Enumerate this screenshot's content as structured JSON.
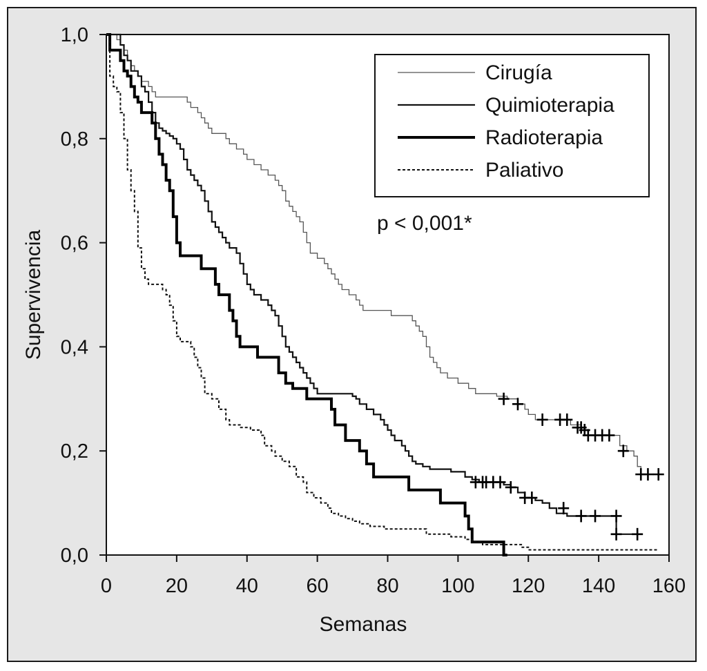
{
  "chart_data": {
    "type": "line",
    "subtype": "kaplan-meier",
    "title": "",
    "xlabel": "Semanas",
    "ylabel": "Supervivencia",
    "xlim": [
      0,
      160
    ],
    "ylim": [
      0,
      1
    ],
    "x_ticks": [
      "0",
      "20",
      "40",
      "60",
      "80",
      "100",
      "120",
      "140",
      "160"
    ],
    "y_ticks": [
      "0,0",
      "0,2",
      "0,4",
      "0,6",
      "0,8",
      "1,0"
    ],
    "annotation": "p < 0,001*",
    "legend_position": "top-right",
    "series": [
      {
        "name": "Cirugía",
        "style": "thin",
        "color": "#555555",
        "points": [
          [
            0,
            1.0
          ],
          [
            3,
            1.0
          ],
          [
            3,
            0.99
          ],
          [
            4,
            0.98
          ],
          [
            5,
            0.97
          ],
          [
            6,
            0.95
          ],
          [
            7,
            0.94
          ],
          [
            8,
            0.93
          ],
          [
            9,
            0.92
          ],
          [
            10,
            0.91
          ],
          [
            12,
            0.9
          ],
          [
            13,
            0.89
          ],
          [
            14,
            0.88
          ],
          [
            22,
            0.88
          ],
          [
            23,
            0.87
          ],
          [
            24,
            0.86
          ],
          [
            26,
            0.85
          ],
          [
            27,
            0.84
          ],
          [
            28,
            0.83
          ],
          [
            29,
            0.82
          ],
          [
            30,
            0.81
          ],
          [
            33,
            0.81
          ],
          [
            34,
            0.8
          ],
          [
            35,
            0.79
          ],
          [
            37,
            0.78
          ],
          [
            38,
            0.78
          ],
          [
            39,
            0.77
          ],
          [
            40,
            0.76
          ],
          [
            42,
            0.75
          ],
          [
            44,
            0.74
          ],
          [
            46,
            0.73
          ],
          [
            48,
            0.72
          ],
          [
            49,
            0.71
          ],
          [
            50,
            0.7
          ],
          [
            51,
            0.68
          ],
          [
            52,
            0.67
          ],
          [
            53,
            0.66
          ],
          [
            54,
            0.65
          ],
          [
            55,
            0.64
          ],
          [
            56,
            0.62
          ],
          [
            57,
            0.6
          ],
          [
            58,
            0.58
          ],
          [
            60,
            0.57
          ],
          [
            62,
            0.56
          ],
          [
            63,
            0.55
          ],
          [
            64,
            0.54
          ],
          [
            65,
            0.53
          ],
          [
            66,
            0.52
          ],
          [
            67,
            0.51
          ],
          [
            69,
            0.5
          ],
          [
            71,
            0.49
          ],
          [
            72,
            0.48
          ],
          [
            73,
            0.47
          ],
          [
            80,
            0.47
          ],
          [
            81,
            0.46
          ],
          [
            86,
            0.46
          ],
          [
            87,
            0.45
          ],
          [
            88,
            0.44
          ],
          [
            89,
            0.43
          ],
          [
            90,
            0.42
          ],
          [
            91,
            0.4
          ],
          [
            92,
            0.38
          ],
          [
            93,
            0.37
          ],
          [
            94,
            0.36
          ],
          [
            95,
            0.35
          ],
          [
            97,
            0.34
          ],
          [
            100,
            0.33
          ],
          [
            103,
            0.32
          ],
          [
            105,
            0.31
          ],
          [
            111,
            0.305
          ],
          [
            114,
            0.3
          ],
          [
            117,
            0.29
          ],
          [
            119,
            0.28
          ],
          [
            120,
            0.27
          ],
          [
            122,
            0.26
          ],
          [
            131,
            0.26
          ],
          [
            132,
            0.25
          ],
          [
            135,
            0.245
          ],
          [
            136,
            0.24
          ],
          [
            137,
            0.23
          ],
          [
            145,
            0.23
          ],
          [
            146,
            0.21
          ],
          [
            148,
            0.2
          ],
          [
            150,
            0.19
          ],
          [
            151,
            0.17
          ],
          [
            152,
            0.155
          ],
          [
            158,
            0.155
          ]
        ],
        "censored": [
          [
            113,
            0.3
          ],
          [
            117,
            0.29
          ],
          [
            124,
            0.26
          ],
          [
            129,
            0.26
          ],
          [
            131,
            0.26
          ],
          [
            134,
            0.245
          ],
          [
            135,
            0.245
          ],
          [
            136,
            0.24
          ],
          [
            137,
            0.23
          ],
          [
            139,
            0.23
          ],
          [
            141,
            0.23
          ],
          [
            143,
            0.23
          ],
          [
            147,
            0.2
          ],
          [
            152,
            0.155
          ],
          [
            154,
            0.155
          ],
          [
            157,
            0.155
          ]
        ]
      },
      {
        "name": "Quimioterapia",
        "style": "medium",
        "color": "#111111",
        "points": [
          [
            0,
            1.0
          ],
          [
            3,
            1.0
          ],
          [
            4,
            0.98
          ],
          [
            5,
            0.96
          ],
          [
            6,
            0.95
          ],
          [
            7,
            0.93
          ],
          [
            9,
            0.92
          ],
          [
            10,
            0.9
          ],
          [
            11,
            0.89
          ],
          [
            12,
            0.87
          ],
          [
            13,
            0.85
          ],
          [
            14,
            0.83
          ],
          [
            15,
            0.82
          ],
          [
            16,
            0.815
          ],
          [
            17,
            0.81
          ],
          [
            18,
            0.805
          ],
          [
            19,
            0.8
          ],
          [
            20,
            0.79
          ],
          [
            21,
            0.78
          ],
          [
            22,
            0.76
          ],
          [
            23,
            0.74
          ],
          [
            24,
            0.73
          ],
          [
            25,
            0.72
          ],
          [
            26,
            0.71
          ],
          [
            27,
            0.7
          ],
          [
            28,
            0.68
          ],
          [
            29,
            0.66
          ],
          [
            30,
            0.64
          ],
          [
            31,
            0.63
          ],
          [
            32,
            0.62
          ],
          [
            33,
            0.61
          ],
          [
            34,
            0.6
          ],
          [
            35,
            0.59
          ],
          [
            37,
            0.58
          ],
          [
            38,
            0.56
          ],
          [
            39,
            0.54
          ],
          [
            40,
            0.52
          ],
          [
            41,
            0.51
          ],
          [
            42,
            0.5
          ],
          [
            44,
            0.49
          ],
          [
            46,
            0.48
          ],
          [
            47,
            0.47
          ],
          [
            48,
            0.46
          ],
          [
            49,
            0.44
          ],
          [
            50,
            0.42
          ],
          [
            51,
            0.4
          ],
          [
            52,
            0.39
          ],
          [
            53,
            0.38
          ],
          [
            54,
            0.37
          ],
          [
            55,
            0.36
          ],
          [
            56,
            0.35
          ],
          [
            57,
            0.34
          ],
          [
            58,
            0.33
          ],
          [
            59,
            0.32
          ],
          [
            60,
            0.31
          ],
          [
            70,
            0.305
          ],
          [
            71,
            0.3
          ],
          [
            72,
            0.29
          ],
          [
            74,
            0.28
          ],
          [
            76,
            0.27
          ],
          [
            78,
            0.26
          ],
          [
            79,
            0.25
          ],
          [
            80,
            0.24
          ],
          [
            81,
            0.23
          ],
          [
            82,
            0.22
          ],
          [
            84,
            0.21
          ],
          [
            85,
            0.2
          ],
          [
            86,
            0.19
          ],
          [
            87,
            0.18
          ],
          [
            88,
            0.175
          ],
          [
            90,
            0.17
          ],
          [
            92,
            0.165
          ],
          [
            98,
            0.16
          ],
          [
            102,
            0.15
          ],
          [
            104,
            0.145
          ],
          [
            106,
            0.14
          ],
          [
            108,
            0.14
          ],
          [
            113,
            0.135
          ],
          [
            115,
            0.13
          ],
          [
            117,
            0.12
          ],
          [
            119,
            0.11
          ],
          [
            122,
            0.105
          ],
          [
            124,
            0.1
          ],
          [
            126,
            0.09
          ],
          [
            128,
            0.08
          ],
          [
            131,
            0.075
          ],
          [
            145,
            0.075
          ],
          [
            145,
            0.04
          ],
          [
            152,
            0.04
          ]
        ],
        "censored": [
          [
            105,
            0.14
          ],
          [
            107,
            0.14
          ],
          [
            108,
            0.14
          ],
          [
            110,
            0.14
          ],
          [
            112,
            0.14
          ],
          [
            115,
            0.13
          ],
          [
            119,
            0.11
          ],
          [
            121,
            0.11
          ],
          [
            130,
            0.09
          ],
          [
            135,
            0.075
          ],
          [
            139,
            0.075
          ],
          [
            145,
            0.075
          ],
          [
            145,
            0.04
          ],
          [
            151,
            0.04
          ]
        ]
      },
      {
        "name": "Radioterapia",
        "style": "thick",
        "color": "#000000",
        "points": [
          [
            0,
            1.0
          ],
          [
            1,
            0.97
          ],
          [
            3,
            0.97
          ],
          [
            4,
            0.95
          ],
          [
            5,
            0.93
          ],
          [
            6,
            0.92
          ],
          [
            7,
            0.9
          ],
          [
            8,
            0.88
          ],
          [
            9,
            0.87
          ],
          [
            10,
            0.85
          ],
          [
            12,
            0.85
          ],
          [
            13,
            0.83
          ],
          [
            14,
            0.8
          ],
          [
            15,
            0.77
          ],
          [
            16,
            0.75
          ],
          [
            17,
            0.72
          ],
          [
            18,
            0.7
          ],
          [
            19,
            0.65
          ],
          [
            20,
            0.6
          ],
          [
            21,
            0.575
          ],
          [
            27,
            0.55
          ],
          [
            31,
            0.52
          ],
          [
            32,
            0.5
          ],
          [
            35,
            0.47
          ],
          [
            36,
            0.45
          ],
          [
            37,
            0.42
          ],
          [
            38,
            0.4
          ],
          [
            43,
            0.38
          ],
          [
            49,
            0.35
          ],
          [
            51,
            0.33
          ],
          [
            53,
            0.32
          ],
          [
            57,
            0.3
          ],
          [
            64,
            0.28
          ],
          [
            65,
            0.25
          ],
          [
            68,
            0.22
          ],
          [
            72,
            0.2
          ],
          [
            74,
            0.175
          ],
          [
            76,
            0.15
          ],
          [
            86,
            0.125
          ],
          [
            95,
            0.1
          ],
          [
            102,
            0.075
          ],
          [
            103,
            0.05
          ],
          [
            104,
            0.025
          ],
          [
            113,
            0.025
          ],
          [
            113,
            0.0
          ],
          [
            114,
            0.0
          ]
        ],
        "censored": []
      },
      {
        "name": "Paliativo",
        "style": "dashed",
        "color": "#111111",
        "points": [
          [
            0,
            1.0
          ],
          [
            1,
            0.92
          ],
          [
            2,
            0.9
          ],
          [
            3,
            0.89
          ],
          [
            4,
            0.85
          ],
          [
            5,
            0.8
          ],
          [
            6,
            0.74
          ],
          [
            7,
            0.7
          ],
          [
            8,
            0.66
          ],
          [
            9,
            0.59
          ],
          [
            10,
            0.55
          ],
          [
            11,
            0.53
          ],
          [
            12,
            0.52
          ],
          [
            16,
            0.51
          ],
          [
            17,
            0.5
          ],
          [
            18,
            0.48
          ],
          [
            19,
            0.45
          ],
          [
            20,
            0.42
          ],
          [
            21,
            0.41
          ],
          [
            24,
            0.4
          ],
          [
            25,
            0.38
          ],
          [
            26,
            0.36
          ],
          [
            27,
            0.34
          ],
          [
            28,
            0.31
          ],
          [
            30,
            0.3
          ],
          [
            32,
            0.28
          ],
          [
            34,
            0.26
          ],
          [
            35,
            0.25
          ],
          [
            38,
            0.245
          ],
          [
            41,
            0.24
          ],
          [
            44,
            0.23
          ],
          [
            45,
            0.21
          ],
          [
            47,
            0.2
          ],
          [
            48,
            0.19
          ],
          [
            50,
            0.18
          ],
          [
            52,
            0.17
          ],
          [
            54,
            0.15
          ],
          [
            56,
            0.14
          ],
          [
            57,
            0.12
          ],
          [
            59,
            0.11
          ],
          [
            61,
            0.1
          ],
          [
            63,
            0.09
          ],
          [
            64,
            0.08
          ],
          [
            66,
            0.075
          ],
          [
            68,
            0.07
          ],
          [
            70,
            0.065
          ],
          [
            72,
            0.06
          ],
          [
            75,
            0.055
          ],
          [
            79,
            0.05
          ],
          [
            80,
            0.05
          ],
          [
            90,
            0.05
          ],
          [
            91,
            0.04
          ],
          [
            96,
            0.04
          ],
          [
            98,
            0.035
          ],
          [
            102,
            0.03
          ],
          [
            104,
            0.025
          ],
          [
            107,
            0.02
          ],
          [
            115,
            0.02
          ],
          [
            118,
            0.015
          ],
          [
            120,
            0.01
          ],
          [
            157,
            0.01
          ]
        ],
        "censored": []
      }
    ]
  }
}
